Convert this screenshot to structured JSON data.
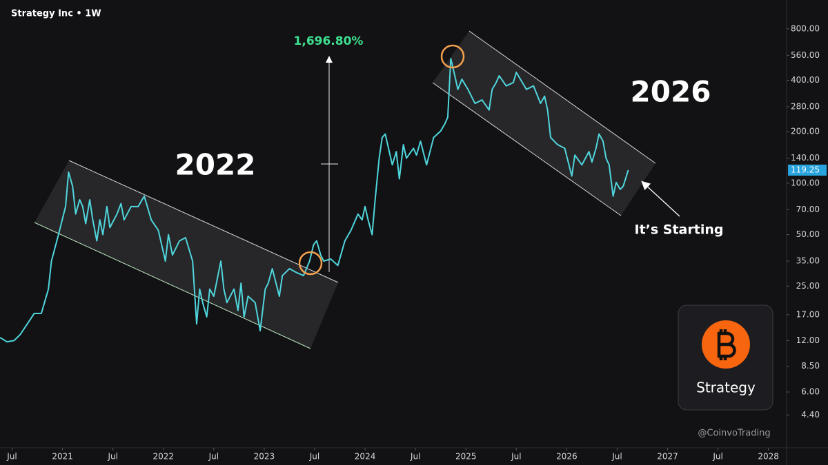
{
  "chart_data": {
    "type": "line",
    "title": "Strategy Inc • 1W",
    "log_scale_y": true,
    "grid": false,
    "x": [
      2020.38,
      2020.45,
      2020.52,
      2020.58,
      2020.65,
      2020.72,
      2020.79,
      2020.86,
      2020.89,
      2020.96,
      2021.03,
      2021.06,
      2021.1,
      2021.13,
      2021.17,
      2021.2,
      2021.23,
      2021.27,
      2021.3,
      2021.34,
      2021.37,
      2021.4,
      2021.44,
      2021.47,
      2021.54,
      2021.58,
      2021.61,
      2021.68,
      2021.75,
      2021.81,
      2021.85,
      2021.88,
      2021.95,
      2022.02,
      2022.05,
      2022.09,
      2022.16,
      2022.22,
      2022.29,
      2022.33,
      2022.36,
      2022.39,
      2022.43,
      2022.46,
      2022.5,
      2022.57,
      2022.6,
      2022.63,
      2022.7,
      2022.74,
      2022.77,
      2022.8,
      2022.84,
      2022.91,
      2022.96,
      2023.01,
      2023.04,
      2023.08,
      2023.15,
      2023.18,
      2023.25,
      2023.32,
      2023.39,
      2023.45,
      2023.49,
      2023.52,
      2023.56,
      2023.59,
      2023.66,
      2023.73,
      2023.8,
      2023.86,
      2023.93,
      2023.97,
      2024.0,
      2024.03,
      2024.07,
      2024.1,
      2024.14,
      2024.17,
      2024.2,
      2024.24,
      2024.27,
      2024.31,
      2024.34,
      2024.38,
      2024.41,
      2024.48,
      2024.51,
      2024.55,
      2024.61,
      2024.68,
      2024.75,
      2024.79,
      2024.82,
      2024.85,
      2024.89,
      2024.92,
      2024.96,
      2025.02,
      2025.09,
      2025.16,
      2025.23,
      2025.26,
      2025.3,
      2025.33,
      2025.4,
      2025.47,
      2025.5,
      2025.54,
      2025.6,
      2025.67,
      2025.74,
      2025.78,
      2025.81,
      2025.84,
      2025.91,
      2025.98,
      2026.05,
      2026.08,
      2026.15,
      2026.22,
      2026.25,
      2026.29,
      2026.32,
      2026.36,
      2026.39,
      2026.42,
      2026.46,
      2026.49,
      2026.53,
      2026.56,
      2026.61
    ],
    "series": [
      {
        "color": "#4fd6dc",
        "values": [
          12.5,
          11.8,
          12,
          13,
          15,
          17.3,
          17.3,
          24,
          35,
          50,
          73,
          116,
          96,
          66,
          80,
          73,
          58,
          80,
          61,
          46,
          61,
          50,
          73,
          55,
          66,
          76,
          61,
          73,
          73,
          84,
          70,
          61,
          53,
          35,
          50,
          38,
          46,
          48,
          35,
          15,
          24,
          20,
          16.5,
          24,
          21.8,
          35,
          24,
          20,
          24,
          18,
          26,
          16.5,
          21.8,
          20,
          13.7,
          24,
          26,
          31.6,
          21.8,
          28.8,
          31.6,
          30,
          28.8,
          35,
          43.7,
          46,
          38,
          35,
          36,
          33,
          46,
          53,
          66,
          61,
          73,
          61,
          50,
          80,
          140,
          185,
          194,
          153,
          128,
          153,
          106,
          168,
          140,
          160,
          146,
          176,
          128,
          185,
          202,
          222,
          243,
          536,
          425,
          354,
          406,
          354,
          293,
          307,
          268,
          354,
          388,
          425,
          371,
          388,
          445,
          406,
          354,
          371,
          293,
          323,
          268,
          185,
          168,
          160,
          110,
          146,
          128,
          153,
          133,
          160,
          194,
          176,
          140,
          128,
          84,
          101,
          92,
          96,
          119.25
        ]
      }
    ],
    "xlim": [
      2020.38,
      2028.18
    ],
    "ylim": [
      2.83,
      1180
    ],
    "xticks": [
      {
        "value": 2020.5,
        "label": "Jul"
      },
      2021,
      {
        "value": 2021.5,
        "label": "Jul"
      },
      2022,
      {
        "value": 2022.5,
        "label": "Jul"
      },
      2023,
      {
        "value": 2023.5,
        "label": "Jul"
      },
      2024,
      {
        "value": 2024.5,
        "label": "Jul"
      },
      2025,
      {
        "value": 2025.5,
        "label": "Jul"
      },
      2026,
      {
        "value": 2026.5,
        "label": "Jul"
      },
      2027,
      {
        "value": 2027.5,
        "label": "Jul"
      },
      2028
    ],
    "yticks": [
      {
        "value": 800,
        "label": "800.00"
      },
      {
        "value": 560,
        "label": "560.00"
      },
      {
        "value": 400,
        "label": "400.00"
      },
      {
        "value": 280,
        "label": "280.00"
      },
      {
        "value": 200,
        "label": "200.00"
      },
      {
        "value": 140,
        "label": "140.00"
      },
      {
        "value": 100,
        "label": "100.00"
      },
      {
        "value": 70,
        "label": "70.00"
      },
      {
        "value": 50,
        "label": "50.00"
      },
      {
        "value": 35,
        "label": "35.00"
      },
      {
        "value": 25,
        "label": "25.00"
      },
      {
        "value": 17,
        "label": "17.00"
      },
      {
        "value": 12,
        "label": "12.00"
      },
      {
        "value": 8.5,
        "label": "8.50"
      },
      {
        "value": 6,
        "label": "6.00"
      },
      {
        "value": 4.4,
        "label": "4.40"
      }
    ],
    "annotations": [
      "2022",
      "2026",
      "1,696.80%",
      "It’s Starting"
    ]
  },
  "brand": {
    "name": "Strategy",
    "handle": "@CoinvoTrading"
  }
}
